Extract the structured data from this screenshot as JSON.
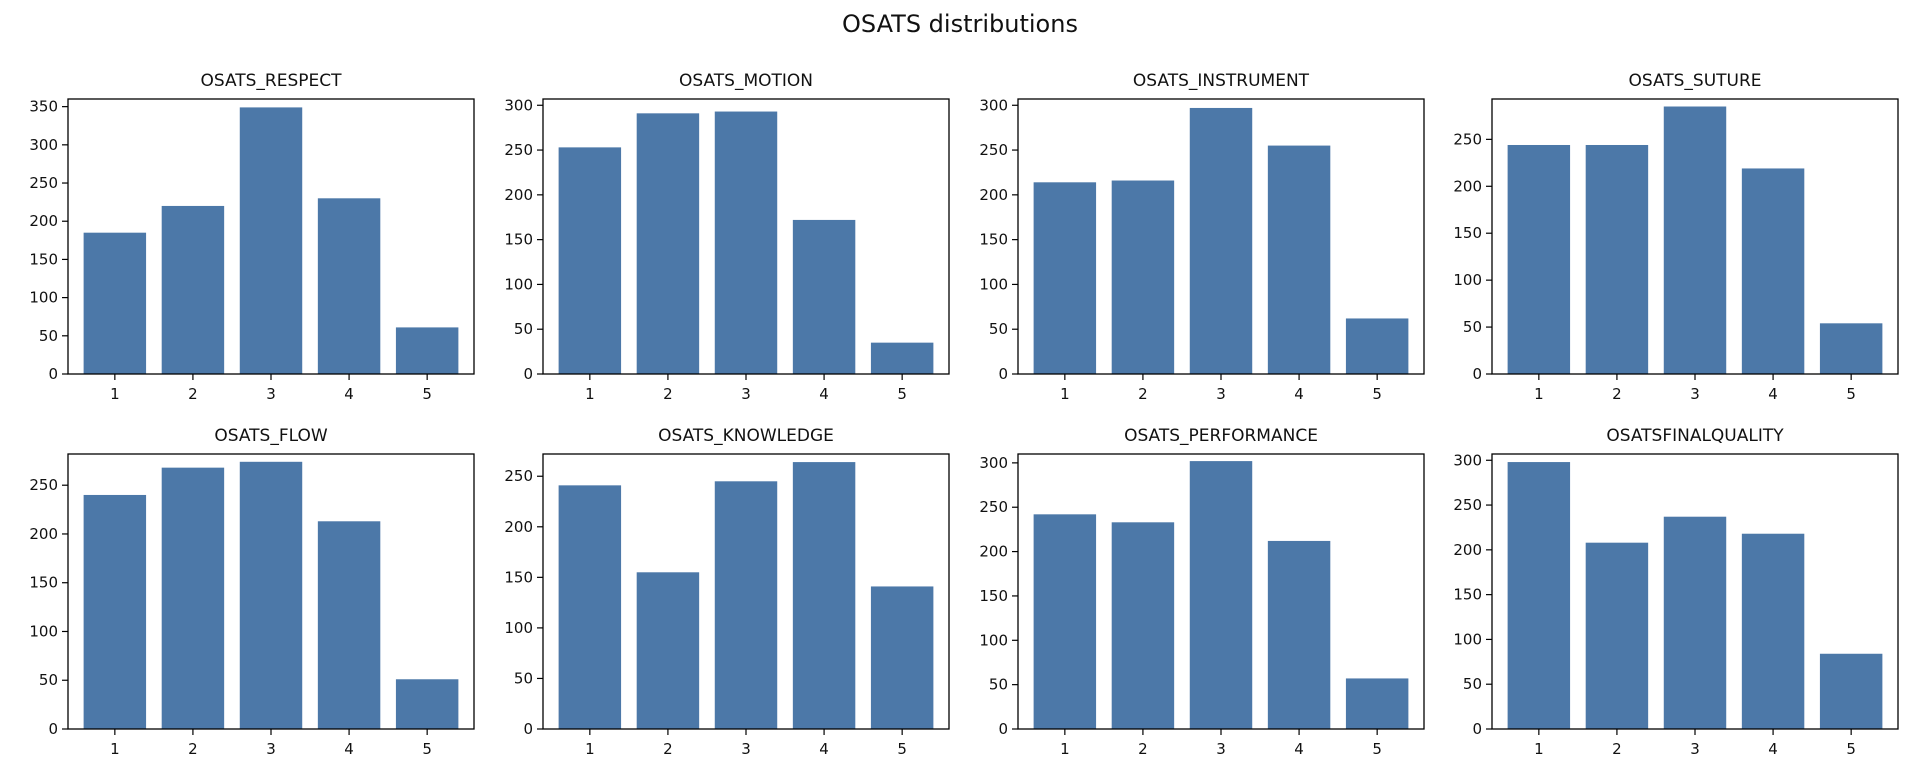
{
  "figure": {
    "title": "OSATS distributions"
  },
  "style": {
    "bar_color": "#4c78a8",
    "axis_color": "#000000"
  },
  "chart_data": [
    {
      "type": "bar",
      "title": "OSATS_RESPECT",
      "categories": [
        "1",
        "2",
        "3",
        "4",
        "5"
      ],
      "values": [
        185,
        220,
        349,
        230,
        61
      ],
      "ylim": [
        0,
        360
      ],
      "yticks": [
        0,
        50,
        100,
        150,
        200,
        250,
        300,
        350
      ],
      "grid": false
    },
    {
      "type": "bar",
      "title": "OSATS_MOTION",
      "categories": [
        "1",
        "2",
        "3",
        "4",
        "5"
      ],
      "values": [
        253,
        291,
        293,
        172,
        35
      ],
      "ylim": [
        0,
        307
      ],
      "yticks": [
        0,
        50,
        100,
        150,
        200,
        250,
        300
      ],
      "grid": false
    },
    {
      "type": "bar",
      "title": "OSATS_INSTRUMENT",
      "categories": [
        "1",
        "2",
        "3",
        "4",
        "5"
      ],
      "values": [
        214,
        216,
        297,
        255,
        62
      ],
      "ylim": [
        0,
        307
      ],
      "yticks": [
        0,
        50,
        100,
        150,
        200,
        250,
        300
      ],
      "grid": false
    },
    {
      "type": "bar",
      "title": "OSATS_SUTURE",
      "categories": [
        "1",
        "2",
        "3",
        "4",
        "5"
      ],
      "values": [
        244,
        244,
        285,
        219,
        54
      ],
      "ylim": [
        0,
        293
      ],
      "yticks": [
        0,
        50,
        100,
        150,
        200,
        250
      ],
      "grid": false
    },
    {
      "type": "bar",
      "title": "OSATS_FLOW",
      "categories": [
        "1",
        "2",
        "3",
        "4",
        "5"
      ],
      "values": [
        240,
        268,
        274,
        213,
        51
      ],
      "ylim": [
        0,
        282
      ],
      "yticks": [
        0,
        50,
        100,
        150,
        200,
        250
      ],
      "grid": false
    },
    {
      "type": "bar",
      "title": "OSATS_KNOWLEDGE",
      "categories": [
        "1",
        "2",
        "3",
        "4",
        "5"
      ],
      "values": [
        241,
        155,
        245,
        264,
        141
      ],
      "ylim": [
        0,
        272
      ],
      "yticks": [
        0,
        50,
        100,
        150,
        200,
        250
      ],
      "grid": false
    },
    {
      "type": "bar",
      "title": "OSATS_PERFORMANCE",
      "categories": [
        "1",
        "2",
        "3",
        "4",
        "5"
      ],
      "values": [
        242,
        233,
        302,
        212,
        57
      ],
      "ylim": [
        0,
        310
      ],
      "yticks": [
        0,
        50,
        100,
        150,
        200,
        250,
        300
      ],
      "grid": false
    },
    {
      "type": "bar",
      "title": "OSATSFINALQUALITY",
      "categories": [
        "1",
        "2",
        "3",
        "4",
        "5"
      ],
      "values": [
        298,
        208,
        237,
        218,
        84
      ],
      "ylim": [
        0,
        307
      ],
      "yticks": [
        0,
        50,
        100,
        150,
        200,
        250,
        300
      ],
      "grid": false
    }
  ]
}
